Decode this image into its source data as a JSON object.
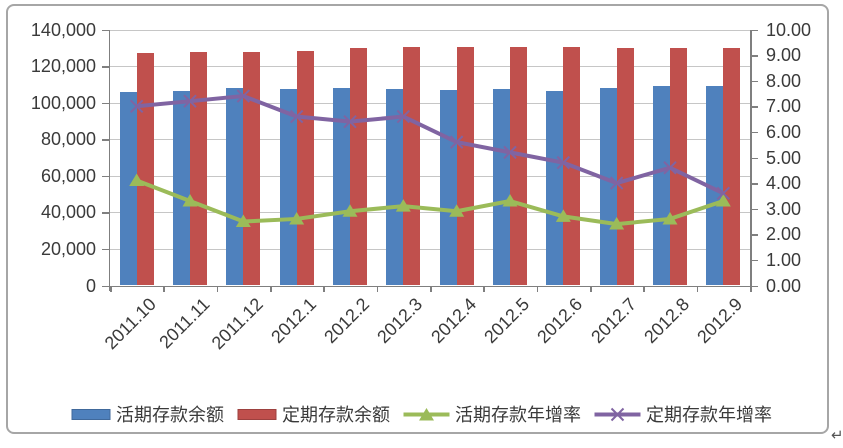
{
  "frame": {
    "return_mark": "↵"
  },
  "chart_data": {
    "type": "bar+line (dual axis combo)",
    "categories": [
      "2011.10",
      "2011.11",
      "2011.12",
      "2012.1",
      "2012.2",
      "2012.3",
      "2012.4",
      "2012.5",
      "2012.6",
      "2012.7",
      "2012.8",
      "2012.9"
    ],
    "series": [
      {
        "key": "demand-deposit-balance",
        "name": "活期存款余额",
        "type": "bar",
        "axis": "left",
        "color": "#4F81BD",
        "marker": "square",
        "values": [
          105800,
          106300,
          108000,
          107600,
          108200,
          107600,
          106900,
          107300,
          106500,
          108000,
          109000,
          108900
        ]
      },
      {
        "key": "time-deposit-balance",
        "name": "定期存款余额",
        "type": "bar",
        "axis": "left",
        "color": "#C0504D",
        "marker": "square",
        "values": [
          127000,
          127700,
          127800,
          128300,
          129700,
          130300,
          130600,
          130300,
          130300,
          130100,
          129800,
          129800
        ]
      },
      {
        "key": "demand-deposit-growth",
        "name": "活期存款年增率",
        "type": "line",
        "axis": "right",
        "color": "#9BBB59",
        "marker": "triangle",
        "values": [
          4.1,
          3.3,
          2.5,
          2.6,
          2.9,
          3.1,
          2.9,
          3.3,
          2.7,
          2.4,
          2.6,
          3.3
        ]
      },
      {
        "key": "time-deposit-growth",
        "name": "定期存款年增率",
        "type": "line",
        "axis": "right",
        "color": "#8064A2",
        "marker": "x",
        "values": [
          7.0,
          7.2,
          7.4,
          6.6,
          6.4,
          6.6,
          5.6,
          5.2,
          4.8,
          4.0,
          4.6,
          3.6
        ]
      }
    ],
    "left_axis": {
      "min": 0,
      "max": 140000,
      "step": 20000,
      "tick_labels": [
        "0",
        "20,000",
        "40,000",
        "60,000",
        "80,000",
        "100,000",
        "120,000",
        "140,000"
      ]
    },
    "right_axis": {
      "min": 0,
      "max": 10,
      "step": 1,
      "tick_labels": [
        "0.00",
        "1.00",
        "2.00",
        "3.00",
        "4.00",
        "5.00",
        "6.00",
        "7.00",
        "8.00",
        "9.00",
        "10.00"
      ]
    },
    "grid": true,
    "legend_position": "bottom"
  }
}
